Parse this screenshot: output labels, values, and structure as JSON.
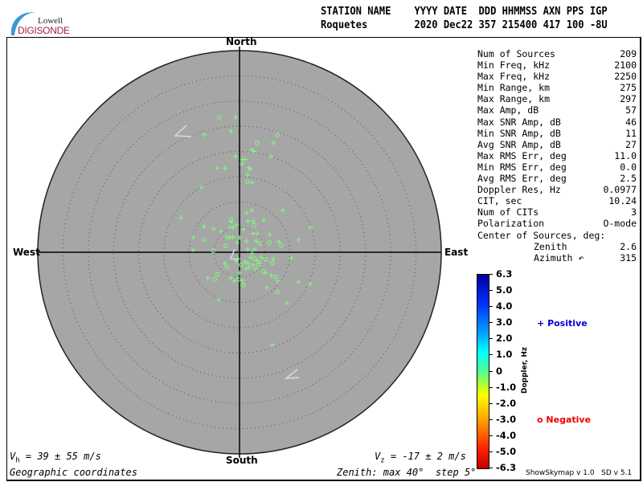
{
  "logo": {
    "line1": "Lowell",
    "line2": "DIGISONDE"
  },
  "header": {
    "labels": "STATION NAME    YYYY DATE  DDD HHMMSS AXN PPS IGP",
    "values": "Roquetes        2020 Dec22 357 215400 417 100 -8U"
  },
  "directions": {
    "north": "North",
    "south": "South",
    "east": "East",
    "west": "West"
  },
  "stats": [
    {
      "label": "Num of Sources",
      "value": "209"
    },
    {
      "label": "Min Freq, kHz",
      "value": "2100"
    },
    {
      "label": "Max Freq, kHz",
      "value": "2250"
    },
    {
      "label": "Min Range, km",
      "value": "275"
    },
    {
      "label": "Max Range, km",
      "value": "297"
    },
    {
      "label": "Max Amp, dB",
      "value": "57"
    },
    {
      "label": "Max SNR Amp, dB",
      "value": "46"
    },
    {
      "label": "Min SNR Amp, dB",
      "value": "11"
    },
    {
      "label": "Avg SNR Amp, dB",
      "value": "27"
    },
    {
      "label": "Max RMS Err, deg",
      "value": "11.0"
    },
    {
      "label": "Min RMS Err, deg",
      "value": "0.0"
    },
    {
      "label": "Avg RMS Err, deg",
      "value": "2.5"
    },
    {
      "label": "Doppler Res, Hz",
      "value": "0.0977"
    },
    {
      "label": "CIT, sec",
      "value": "10.24"
    },
    {
      "label": "Num of CITs",
      "value": "3"
    },
    {
      "label": "Polarization",
      "value": "O-mode"
    }
  ],
  "center": {
    "title": "Center of Sources, deg:",
    "zenith_label": "Zenith",
    "zenith": "2.6",
    "azimuth_label": "Azimuth ↶",
    "azimuth": "315"
  },
  "colorbar": {
    "title": "Doppler, Hz",
    "ticks": [
      "6.3",
      "5.0",
      "4.0",
      "3.0",
      "2.0",
      "1.0",
      "0",
      "-1.0",
      "-2.0",
      "-3.0",
      "-4.0",
      "-5.0",
      "-6.3"
    ],
    "range": [
      -6.3,
      6.3
    ]
  },
  "legend": {
    "positive": "Positive",
    "negative": "Negative",
    "positive_color": "#0000dd",
    "negative_color": "#ee0000"
  },
  "footer": {
    "vh_sym": "V",
    "vh_sub": "h",
    "vh_rest": " = 39 ± 55 m/s",
    "vz_sym": "V",
    "vz_sub": "z",
    "vz_rest": " = -17 ± 2 m/s",
    "coords": "Geographic coordinates",
    "zenith": "Zenith: max 40°  step 5°",
    "version": "ShowSkymap v 1.0   SD v 5.1"
  },
  "skymap": {
    "zenith_max_deg": 40,
    "zenith_step_deg": 5,
    "background": "#a6a6a6",
    "point_color": "#7dff7d",
    "points_east_north_deg": [
      [
        -4.0,
        26.8,
        "o"
      ],
      [
        -0.8,
        26.8,
        "+"
      ],
      [
        -7.0,
        23.3,
        "+"
      ],
      [
        -1.7,
        24.0,
        "+"
      ],
      [
        7.5,
        23.3,
        "o"
      ],
      [
        3.5,
        21.7,
        "o"
      ],
      [
        6.7,
        21.7,
        "+"
      ],
      [
        2.4,
        20.3,
        "+"
      ],
      [
        2.9,
        20.0,
        "+"
      ],
      [
        6.2,
        19.0,
        "+"
      ],
      [
        -0.8,
        19.0,
        "+"
      ],
      [
        0.6,
        18.4,
        "+"
      ],
      [
        1.1,
        18.4,
        "+"
      ],
      [
        0.5,
        17.5,
        "+"
      ],
      [
        -4.4,
        16.7,
        "+"
      ],
      [
        -2.9,
        16.7,
        "+"
      ],
      [
        1.9,
        16.8,
        "+"
      ],
      [
        2.1,
        16.5,
        "+"
      ],
      [
        1.6,
        15.4,
        "+"
      ],
      [
        -7.5,
        12.9,
        "+"
      ],
      [
        1.6,
        14.0,
        "o"
      ],
      [
        2.5,
        13.8,
        "+"
      ],
      [
        8.6,
        8.3,
        "+"
      ],
      [
        -11.6,
        6.8,
        "+"
      ],
      [
        2.4,
        8.3,
        "+"
      ],
      [
        1.4,
        7.8,
        "+"
      ],
      [
        -1.7,
        6.5,
        "o"
      ],
      [
        -1.6,
        6.0,
        "+"
      ],
      [
        -1.9,
        4.9,
        "+"
      ],
      [
        -1.3,
        4.9,
        "+"
      ],
      [
        -0.6,
        5.4,
        "+"
      ],
      [
        1.7,
        6.2,
        "+"
      ],
      [
        2.7,
        6.2,
        "+"
      ],
      [
        2.9,
        5.4,
        "o"
      ],
      [
        4.8,
        6.3,
        "+"
      ],
      [
        -7.1,
        5.1,
        "+"
      ],
      [
        -5.1,
        4.6,
        "+"
      ],
      [
        -3.7,
        4.1,
        "+"
      ],
      [
        -1.9,
        2.9,
        "+"
      ],
      [
        -1.3,
        3.0,
        "+"
      ],
      [
        0.8,
        4.6,
        "+"
      ],
      [
        0,
        2.9,
        "+"
      ],
      [
        -9.2,
        3.0,
        "+"
      ],
      [
        -7.0,
        2.5,
        "o"
      ],
      [
        -2.5,
        3.0,
        "o"
      ],
      [
        2.7,
        3.7,
        "+"
      ],
      [
        3.5,
        3.7,
        "+"
      ],
      [
        6.0,
        3.5,
        "+"
      ],
      [
        7.8,
        2.1,
        "+"
      ],
      [
        11.7,
        2.5,
        "+"
      ],
      [
        14.0,
        4.9,
        "+"
      ],
      [
        -5.2,
        0.3,
        "o"
      ],
      [
        -2.7,
        1.3,
        "o"
      ],
      [
        -0.5,
        1.9,
        "+"
      ],
      [
        1.4,
        2.2,
        "+"
      ],
      [
        3.3,
        2.2,
        "+"
      ],
      [
        4.1,
        1.7,
        "o"
      ],
      [
        5.9,
        1.9,
        "o"
      ],
      [
        8.3,
        1.4,
        "o"
      ],
      [
        -9.2,
        0.5,
        "+"
      ],
      [
        1.6,
        0.6,
        "+"
      ],
      [
        2.5,
        -0.2,
        "+"
      ],
      [
        3.0,
        0.6,
        "+"
      ],
      [
        3.5,
        -1.7,
        "+"
      ],
      [
        4.3,
        -1.0,
        "+"
      ],
      [
        5.1,
        -1.4,
        "o"
      ],
      [
        6.7,
        -1.3,
        "+"
      ],
      [
        6.5,
        -2.1,
        "o"
      ],
      [
        10.3,
        -1.1,
        "+"
      ],
      [
        -0.6,
        -1.7,
        "+"
      ],
      [
        -2.9,
        -2.2,
        "+"
      ],
      [
        -2.5,
        -2.9,
        "o"
      ],
      [
        -4.4,
        -4.4,
        "o"
      ],
      [
        -6.3,
        -5.1,
        "+"
      ],
      [
        -4.9,
        -5.4,
        "o"
      ],
      [
        -1.7,
        -5.1,
        "+"
      ],
      [
        -1.1,
        -5.7,
        "+"
      ],
      [
        -0.2,
        -5.4,
        "o"
      ],
      [
        0.6,
        -5.6,
        "+"
      ],
      [
        1.1,
        -1.9,
        "+"
      ],
      [
        1.7,
        -2.2,
        "+"
      ],
      [
        1.9,
        -2.9,
        "+"
      ],
      [
        2.7,
        -2.5,
        "+"
      ],
      [
        3.2,
        -3.3,
        "+"
      ],
      [
        3.8,
        -2.5,
        "o"
      ],
      [
        4.8,
        -3.8,
        "o"
      ],
      [
        5.1,
        -4.1,
        "+"
      ],
      [
        6.3,
        -4.6,
        "+"
      ],
      [
        7.1,
        -4.9,
        "o"
      ],
      [
        7.6,
        -5.7,
        "+"
      ],
      [
        7.5,
        -7.9,
        "o"
      ],
      [
        9.4,
        -10.0,
        "+"
      ],
      [
        11.7,
        -5.9,
        "+"
      ],
      [
        14.0,
        -6.3,
        "+"
      ],
      [
        -4.1,
        -9.4,
        "+"
      ],
      [
        0.8,
        -6.5,
        "o"
      ],
      [
        5.4,
        -7.0,
        "+"
      ],
      [
        6.5,
        -18.4,
        "+"
      ],
      [
        0,
        -4.1,
        "+"
      ],
      [
        0.3,
        -2.5,
        "o"
      ],
      [
        1.3,
        -3.3,
        "+"
      ],
      [
        2.2,
        -1.0,
        "+"
      ],
      [
        2.9,
        -1.3,
        "o"
      ],
      [
        -0.3,
        -1.3,
        "+"
      ],
      [
        4.1,
        -2.2,
        "+"
      ]
    ]
  }
}
